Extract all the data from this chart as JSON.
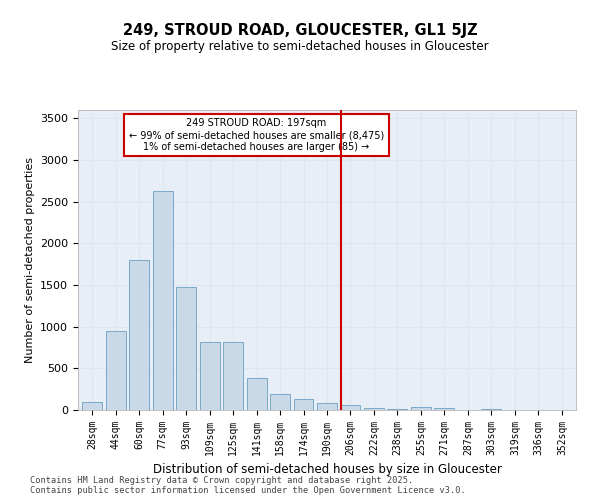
{
  "title": "249, STROUD ROAD, GLOUCESTER, GL1 5JZ",
  "subtitle": "Size of property relative to semi-detached houses in Gloucester",
  "xlabel": "Distribution of semi-detached houses by size in Gloucester",
  "ylabel": "Number of semi-detached properties",
  "bar_labels": [
    "28sqm",
    "44sqm",
    "60sqm",
    "77sqm",
    "93sqm",
    "109sqm",
    "125sqm",
    "141sqm",
    "158sqm",
    "174sqm",
    "190sqm",
    "206sqm",
    "222sqm",
    "238sqm",
    "255sqm",
    "271sqm",
    "287sqm",
    "303sqm",
    "319sqm",
    "336sqm",
    "352sqm"
  ],
  "bar_values": [
    100,
    950,
    1800,
    2625,
    1480,
    820,
    820,
    380,
    195,
    130,
    85,
    55,
    30,
    10,
    35,
    30,
    5,
    15,
    5,
    0,
    0
  ],
  "bar_color": "#c9d9e8",
  "bar_edge_color": "#7aaac8",
  "vline_x": 10.6,
  "vline_color": "#cc0000",
  "annotation_text": "249 STROUD ROAD: 197sqm\n← 99% of semi-detached houses are smaller (8,475)\n1% of semi-detached houses are larger (85) →",
  "annotation_box_color": "#cc0000",
  "ylim": [
    0,
    3600
  ],
  "yticks": [
    0,
    500,
    1000,
    1500,
    2000,
    2500,
    3000,
    3500
  ],
  "grid_color": "#dde6f0",
  "bg_color": "#e8eef5",
  "footer_line1": "Contains HM Land Registry data © Crown copyright and database right 2025.",
  "footer_line2": "Contains public sector information licensed under the Open Government Licence v3.0."
}
